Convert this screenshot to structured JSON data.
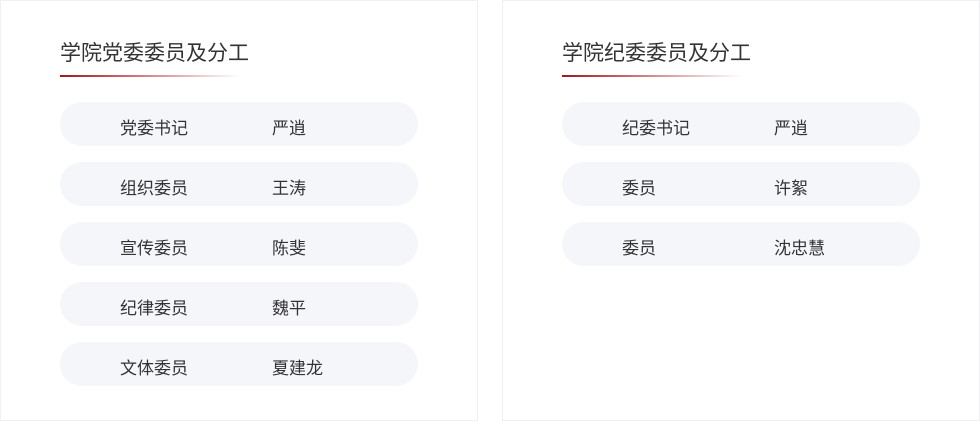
{
  "party_committee": {
    "title": "学院党委委员及分工",
    "members": [
      {
        "role": "党委书记",
        "name": "严逍"
      },
      {
        "role": "组织委员",
        "name": "王涛"
      },
      {
        "role": "宣传委员",
        "name": "陈斐"
      },
      {
        "role": "纪律委员",
        "name": "魏平"
      },
      {
        "role": "文体委员",
        "name": "夏建龙"
      }
    ]
  },
  "discipline_committee": {
    "title": "学院纪委委员及分工",
    "members": [
      {
        "role": "纪委书记",
        "name": "严逍"
      },
      {
        "role": "委员",
        "name": "许絮"
      },
      {
        "role": "委员",
        "name": "沈忠慧"
      }
    ]
  },
  "colors": {
    "accent": "#a4161d",
    "row_bg": "#f5f6fa"
  }
}
